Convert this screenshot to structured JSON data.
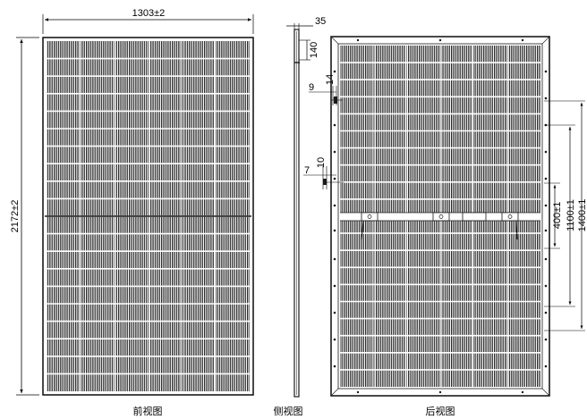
{
  "captions": {
    "front": "前视图",
    "side": "侧视图",
    "back": "后视图"
  },
  "dimensions": {
    "width": "1303±2",
    "height": "2172±2",
    "thickness": "35",
    "side_top_offset": "140",
    "mount_hole_1": "400±1",
    "mount_hole_2": "1100±1",
    "mount_hole_3": "1400±1",
    "detail_9": "9",
    "detail_14": "14",
    "detail_7": "7",
    "detail_10": "10"
  },
  "colors": {
    "line": "#1a1a1a",
    "cell_dark": "#2b2b2b",
    "background": "#ffffff"
  }
}
